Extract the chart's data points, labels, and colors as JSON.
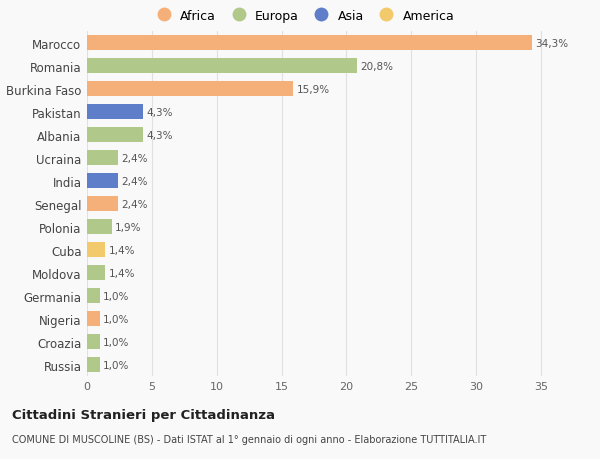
{
  "countries": [
    "Marocco",
    "Romania",
    "Burkina Faso",
    "Pakistan",
    "Albania",
    "Ucraina",
    "India",
    "Senegal",
    "Polonia",
    "Cuba",
    "Moldova",
    "Germania",
    "Nigeria",
    "Croazia",
    "Russia"
  ],
  "values": [
    34.3,
    20.8,
    15.9,
    4.3,
    4.3,
    2.4,
    2.4,
    2.4,
    1.9,
    1.4,
    1.4,
    1.0,
    1.0,
    1.0,
    1.0
  ],
  "labels": [
    "34,3%",
    "20,8%",
    "15,9%",
    "4,3%",
    "4,3%",
    "2,4%",
    "2,4%",
    "2,4%",
    "1,9%",
    "1,4%",
    "1,4%",
    "1,0%",
    "1,0%",
    "1,0%",
    "1,0%"
  ],
  "continents": [
    "Africa",
    "Europa",
    "Africa",
    "Asia",
    "Europa",
    "Europa",
    "Asia",
    "Africa",
    "Europa",
    "America",
    "Europa",
    "Europa",
    "Africa",
    "Europa",
    "Europa"
  ],
  "colors": {
    "Africa": "#F5B07A",
    "Europa": "#B0C98A",
    "Asia": "#5E7EC9",
    "America": "#F2C96B"
  },
  "title": "Cittadini Stranieri per Cittadinanza",
  "subtitle": "COMUNE DI MUSCOLINE (BS) - Dati ISTAT al 1° gennaio di ogni anno - Elaborazione TUTTITALIA.IT",
  "xlim": [
    0,
    37
  ],
  "xticks": [
    0,
    5,
    10,
    15,
    20,
    25,
    30,
    35
  ],
  "background_color": "#f9f9f9",
  "bar_height": 0.65,
  "grid_color": "#e0e0e0",
  "legend_order": [
    "Africa",
    "Europa",
    "Asia",
    "America"
  ]
}
